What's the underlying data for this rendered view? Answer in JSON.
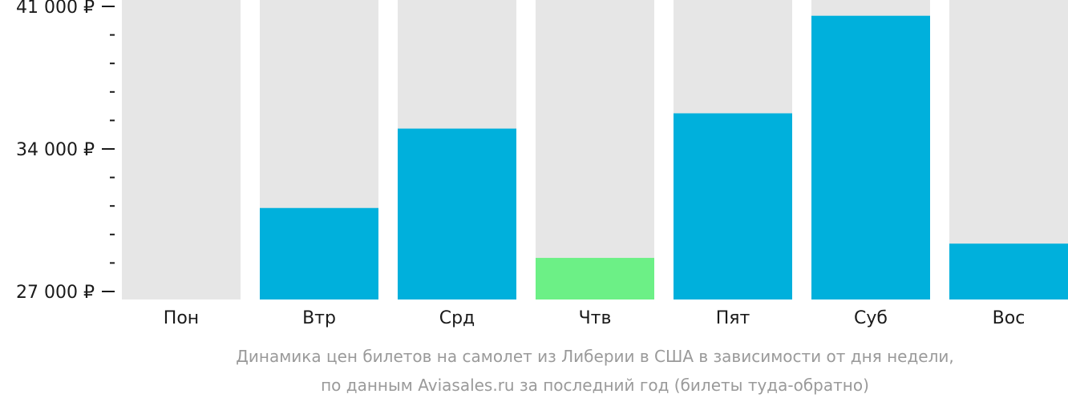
{
  "chart_data": {
    "type": "bar",
    "categories": [
      "Пон",
      "Втр",
      "Срд",
      "Чтв",
      "Пят",
      "Суб",
      "Вос"
    ],
    "values": [
      null,
      31100,
      35000,
      28650,
      35750,
      40540,
      29350
    ],
    "ylim": [
      27000,
      41000
    ],
    "yticks": [
      {
        "value": 41000,
        "label": "41 000 ₽"
      },
      {
        "value": 34000,
        "label": "34 000 ₽"
      },
      {
        "value": 27000,
        "label": "27 000 ₽"
      }
    ],
    "minor_tick_step": 1400,
    "caption": [
      "Динамика цен билетов на самолет из Либерии в США в зависимости от дня недели,",
      "по данным Aviasales.ru за последний год (билеты туда-обратно)"
    ],
    "colors": {
      "bar": "#00b0dc",
      "highlight": "#6cf086",
      "background_bar": "#e6e6e6",
      "axis": "#1a1a1a",
      "caption": "#9a9a9a"
    },
    "highlight_index": 3
  }
}
